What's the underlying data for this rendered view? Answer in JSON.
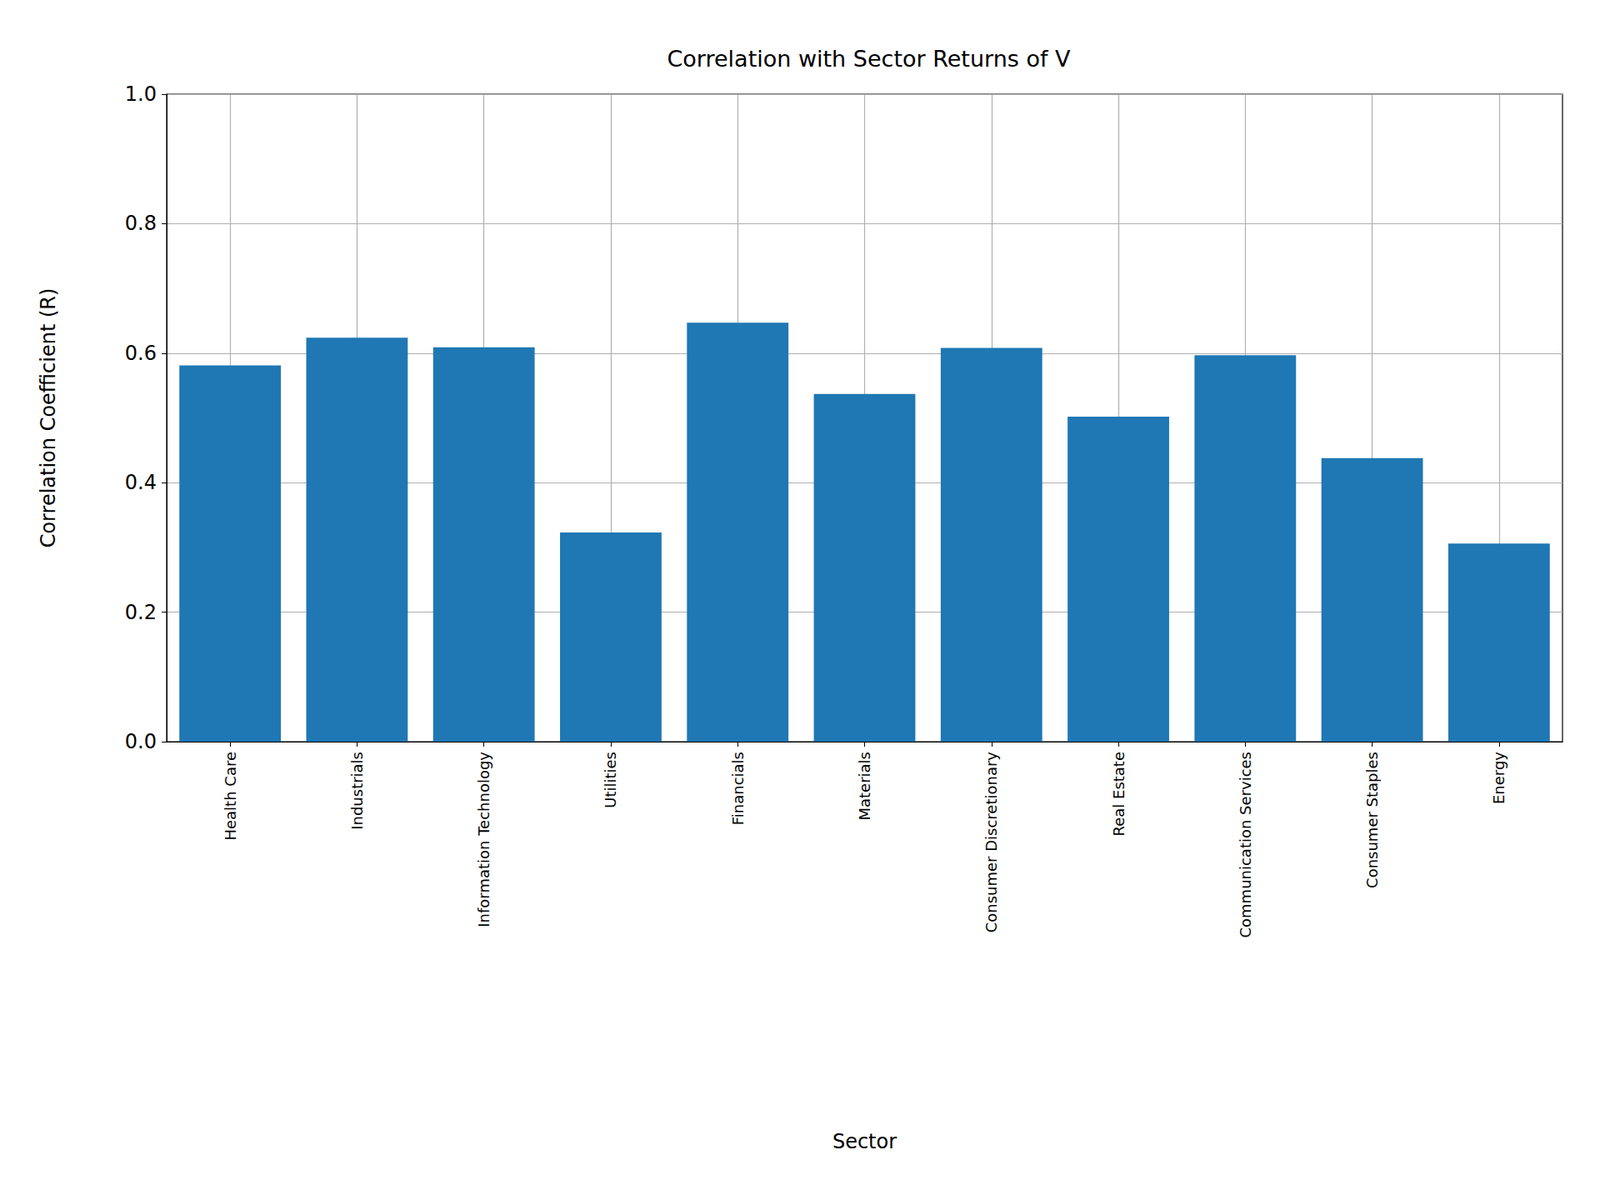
{
  "chart_data": {
    "type": "bar",
    "title": "Correlation with Sector Returns of V",
    "x_label": "Sector",
    "y_label": "Correlation Coefficient (R)",
    "categories": [
      "Health Care",
      "Industrials",
      "Information Technology",
      "Utilities",
      "Financials",
      "Materials",
      "Consumer Discretionary",
      "Real Estate",
      "Communication Services",
      "Consumer Staples",
      "Energy"
    ],
    "values": [
      0.581,
      0.624,
      0.609,
      0.323,
      0.647,
      0.537,
      0.608,
      0.502,
      0.597,
      0.438,
      0.306
    ],
    "color": "#1f77b4",
    "ylim": [
      0,
      1
    ],
    "yticks": [
      {
        "value": 0,
        "label": "0.0"
      },
      0.2,
      0.4,
      0.6,
      0.8,
      {
        "value": 1,
        "label": "1.0"
      }
    ],
    "grid": true
  }
}
